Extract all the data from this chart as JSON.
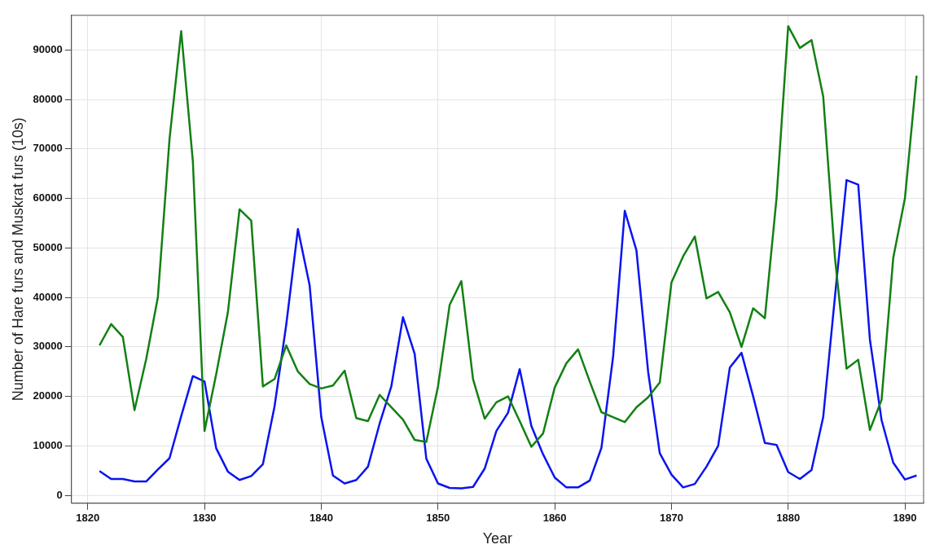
{
  "chart_data": {
    "type": "line",
    "xlabel": "Year",
    "ylabel": "Number of Hare furs and Muskrat furs (10s)",
    "x": [
      1821,
      1822,
      1823,
      1824,
      1825,
      1826,
      1827,
      1828,
      1829,
      1830,
      1831,
      1832,
      1833,
      1834,
      1835,
      1836,
      1837,
      1838,
      1839,
      1840,
      1841,
      1842,
      1843,
      1844,
      1845,
      1846,
      1847,
      1848,
      1849,
      1850,
      1851,
      1852,
      1853,
      1854,
      1855,
      1856,
      1857,
      1858,
      1859,
      1860,
      1861,
      1862,
      1863,
      1864,
      1865,
      1866,
      1867,
      1868,
      1869,
      1870,
      1871,
      1872,
      1873,
      1874,
      1875,
      1876,
      1877,
      1878,
      1879,
      1880,
      1881,
      1882,
      1883,
      1884,
      1885,
      1886,
      1887,
      1888,
      1889,
      1890,
      1891
    ],
    "series": [
      {
        "color": "#138013",
        "values": [
          30300,
          34600,
          32000,
          17200,
          27500,
          40000,
          72000,
          93800,
          67500,
          13000,
          24500,
          37000,
          57800,
          55500,
          22000,
          23500,
          30300,
          25000,
          22500,
          21600,
          22200,
          25200,
          15600,
          15000,
          20300,
          17800,
          15300,
          11200,
          10800,
          22000,
          38500,
          43300,
          23500,
          15500,
          18800,
          20000,
          15000,
          9800,
          12500,
          21800,
          26700,
          29500,
          23000,
          16800,
          15800,
          14800,
          17800,
          19800,
          22800,
          43000,
          48300,
          52300,
          39800,
          41100,
          37000,
          30000,
          37800,
          35800,
          60000,
          94800,
          90400,
          92000,
          80600,
          48200,
          25600,
          27400,
          13200,
          19300,
          48000,
          60000,
          84800
        ]
      },
      {
        "color": "#0a14f0",
        "values": [
          4900,
          3300,
          3300,
          2800,
          2800,
          5200,
          7500,
          16000,
          24100,
          23000,
          9500,
          4800,
          3100,
          3900,
          6300,
          18000,
          34500,
          53800,
          42500,
          15800,
          4000,
          2400,
          3100,
          5800,
          14500,
          22000,
          36000,
          28600,
          7400,
          2400,
          1500,
          1400,
          1700,
          5400,
          13000,
          16700,
          25500,
          14000,
          8300,
          3600,
          1600,
          1600,
          3000,
          9600,
          28000,
          57500,
          49500,
          25000,
          8500,
          4200,
          1600,
          2300,
          5800,
          10000,
          25800,
          28800,
          20000,
          10600,
          10200,
          4700,
          3300,
          5100,
          15800,
          40000,
          63700,
          62800,
          31500,
          15200,
          6600,
          3200,
          4000
        ]
      }
    ],
    "xlim": [
      1818.6,
      1891.6
    ],
    "xticks": [
      1820,
      1830,
      1840,
      1850,
      1860,
      1870,
      1880,
      1890
    ],
    "ylim": [
      -1600,
      97000
    ],
    "yticks": [
      0,
      10000,
      20000,
      30000,
      40000,
      50000,
      60000,
      70000,
      80000,
      90000
    ],
    "grid": true,
    "legend": false,
    "marker": "none",
    "line_style": "solid"
  }
}
